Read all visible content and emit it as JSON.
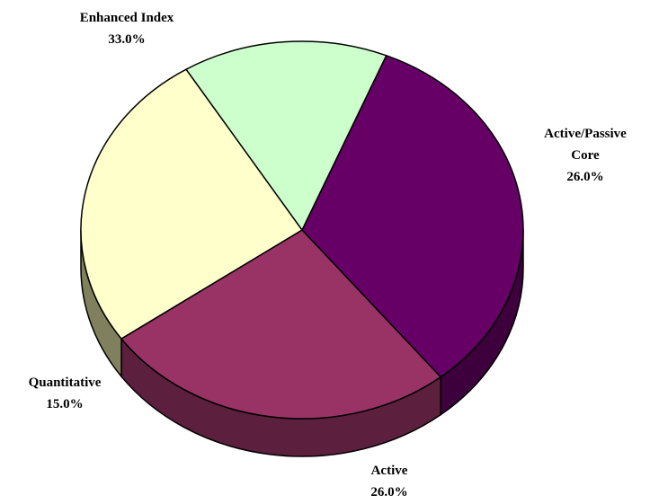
{
  "chart_data": {
    "type": "pie",
    "style": "3d-tilted",
    "legend": "none",
    "slices": [
      {
        "label": "Enhanced Index",
        "label_lines": [
          "Enhanced Index"
        ],
        "value_label": "33.0%",
        "value": 33.0,
        "color": "#660066",
        "side_color": "#3d003d"
      },
      {
        "label": "Active/Passive Core",
        "label_lines": [
          "Active/Passive",
          "Core"
        ],
        "value_label": "26.0%",
        "value": 26.0,
        "color": "#993366",
        "side_color": "#5c1f3d"
      },
      {
        "label": "Active",
        "label_lines": [
          "Active"
        ],
        "value_label": "26.0%",
        "value": 26.0,
        "color": "#ffffcc",
        "side_color": "#80805f"
      },
      {
        "label": "Quantitative",
        "label_lines": [
          "Quantitative"
        ],
        "value_label": "15.0%",
        "value": 15.0,
        "color": "#ccffcc",
        "side_color": "#668066"
      }
    ]
  }
}
